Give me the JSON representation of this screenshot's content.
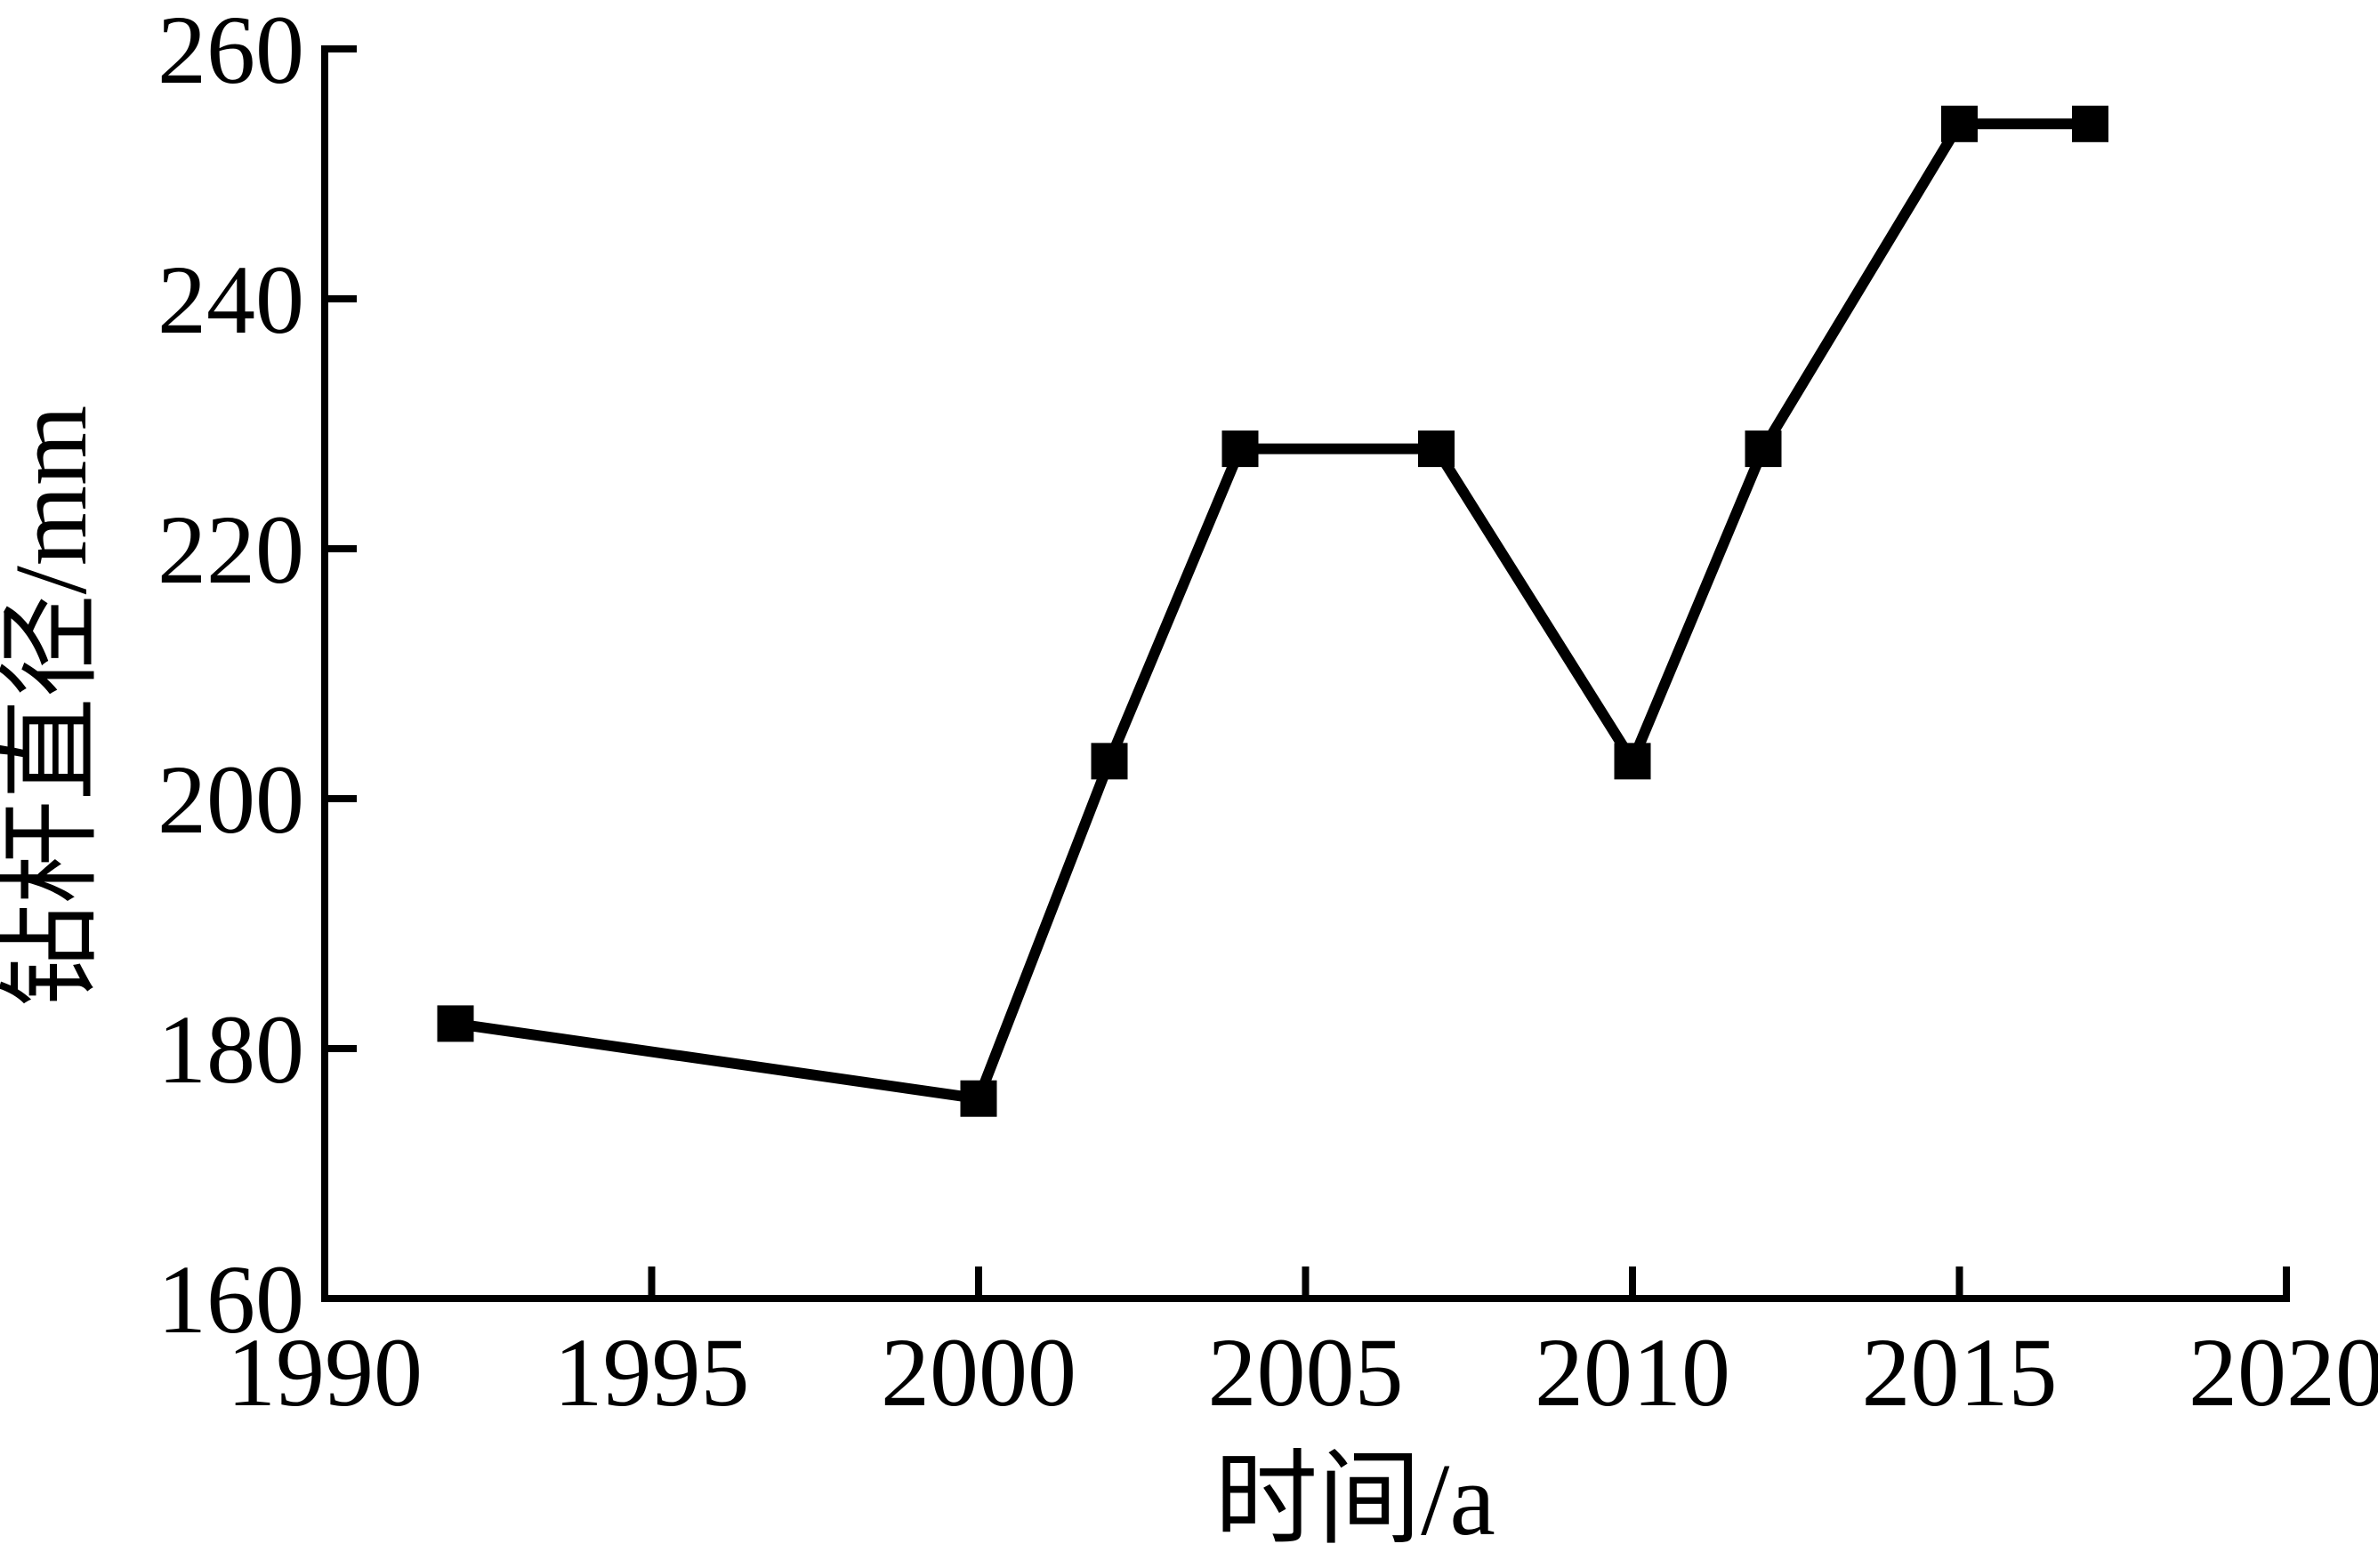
{
  "chart_data": {
    "type": "line",
    "title": "",
    "xlabel": "时间/a",
    "ylabel": "钻杆直径/mm",
    "x": [
      1992,
      2000,
      2002,
      2004,
      2007,
      2010,
      2012,
      2015,
      2017
    ],
    "series": [
      {
        "name": "钻杆直径",
        "values": [
          182,
          176,
          203,
          228,
          228,
          203,
          228,
          254,
          254
        ]
      }
    ],
    "xlim": [
      1990,
      2020
    ],
    "ylim": [
      160,
      260
    ],
    "xticks": [
      1990,
      1995,
      2000,
      2005,
      2010,
      2015,
      2020
    ],
    "yticks": [
      160,
      180,
      200,
      220,
      240,
      260
    ],
    "grid": false,
    "legend": "none",
    "marker": "square",
    "line_color": "#000000",
    "marker_color": "#000000",
    "axis_color": "#000000",
    "tick_label_color": "#000000",
    "background_color": "#ffffff"
  }
}
